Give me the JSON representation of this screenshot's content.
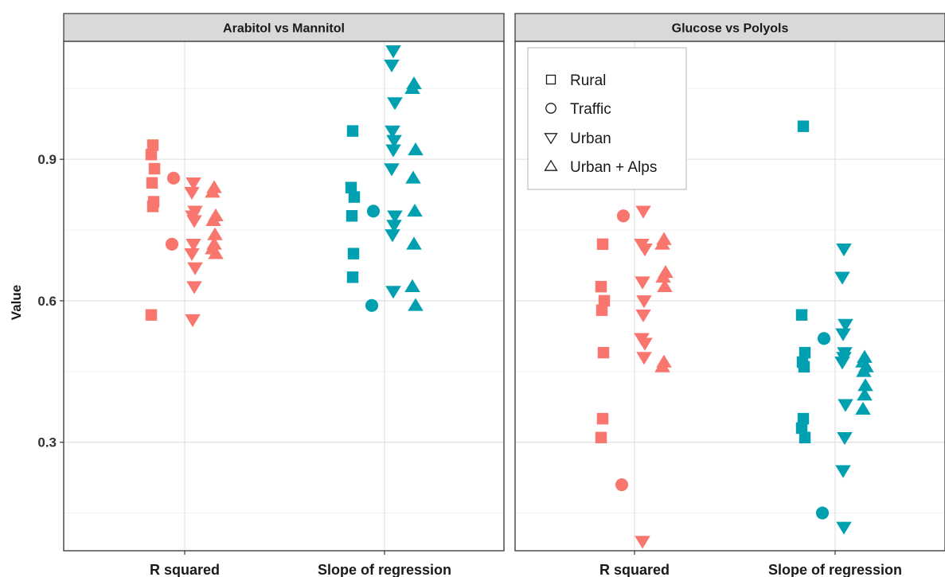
{
  "chart_data": {
    "type": "scatter",
    "ylabel": "Value",
    "xlabel": "",
    "ylim": [
      0.07,
      1.15
    ],
    "y_ticks": [
      "0.3",
      "0.6",
      "0.9"
    ],
    "categories": [
      "R squared",
      "Slope of regression"
    ],
    "grid": true,
    "legend_position": "top-left of right panel",
    "colors": {
      "R squared": "#f8766d",
      "Slope of regression": "#00a0b0"
    },
    "shapes": [
      "Rural",
      "Traffic",
      "Urban",
      "Urban + Alps"
    ],
    "legend": [
      {
        "label": "Rural",
        "shape": "square"
      },
      {
        "label": "Traffic",
        "shape": "circle"
      },
      {
        "label": "Urban",
        "shape": "triangle-down"
      },
      {
        "label": "Urban + Alps",
        "shape": "triangle-up"
      }
    ],
    "panels": [
      {
        "title": "Arabitol vs Mannitol",
        "points": {
          "R squared": {
            "Rural": [
              0.93,
              0.91,
              0.88,
              0.85,
              0.81,
              0.8,
              0.57
            ],
            "Traffic": [
              0.86,
              0.72
            ],
            "Urban": [
              0.85,
              0.83,
              0.79,
              0.78,
              0.77,
              0.72,
              0.7,
              0.67,
              0.63,
              0.56
            ],
            "Urban + Alps": [
              0.84,
              0.83,
              0.78,
              0.77,
              0.74,
              0.72,
              0.71,
              0.7
            ]
          },
          "Slope of regression": {
            "Rural": [
              0.96,
              0.84,
              0.82,
              0.78,
              0.7,
              0.65
            ],
            "Traffic": [
              0.79,
              0.59
            ],
            "Urban": [
              1.13,
              1.1,
              1.02,
              0.96,
              0.94,
              0.92,
              0.88,
              0.78,
              0.76,
              0.74,
              0.62
            ],
            "Urban + Alps": [
              1.06,
              1.05,
              0.92,
              0.86,
              0.79,
              0.72,
              0.63,
              0.59
            ]
          }
        }
      },
      {
        "title": "Glucose vs Polyols",
        "points": {
          "R squared": {
            "Rural": [
              0.72,
              0.63,
              0.6,
              0.58,
              0.49,
              0.35,
              0.31
            ],
            "Traffic": [
              0.78,
              0.21
            ],
            "Urban": [
              0.79,
              0.72,
              0.71,
              0.64,
              0.6,
              0.57,
              0.52,
              0.51,
              0.48,
              0.09
            ],
            "Urban + Alps": [
              0.73,
              0.72,
              0.66,
              0.65,
              0.63,
              0.47,
              0.46
            ]
          },
          "Slope of regression": {
            "Rural": [
              0.97,
              0.57,
              0.49,
              0.47,
              0.46,
              0.35,
              0.33,
              0.31
            ],
            "Traffic": [
              0.52,
              0.15
            ],
            "Urban": [
              0.71,
              0.65,
              0.55,
              0.53,
              0.49,
              0.48,
              0.47,
              0.38,
              0.31,
              0.24,
              0.12
            ],
            "Urban + Alps": [
              0.48,
              0.47,
              0.46,
              0.45,
              0.42,
              0.4,
              0.37
            ]
          }
        }
      }
    ]
  }
}
